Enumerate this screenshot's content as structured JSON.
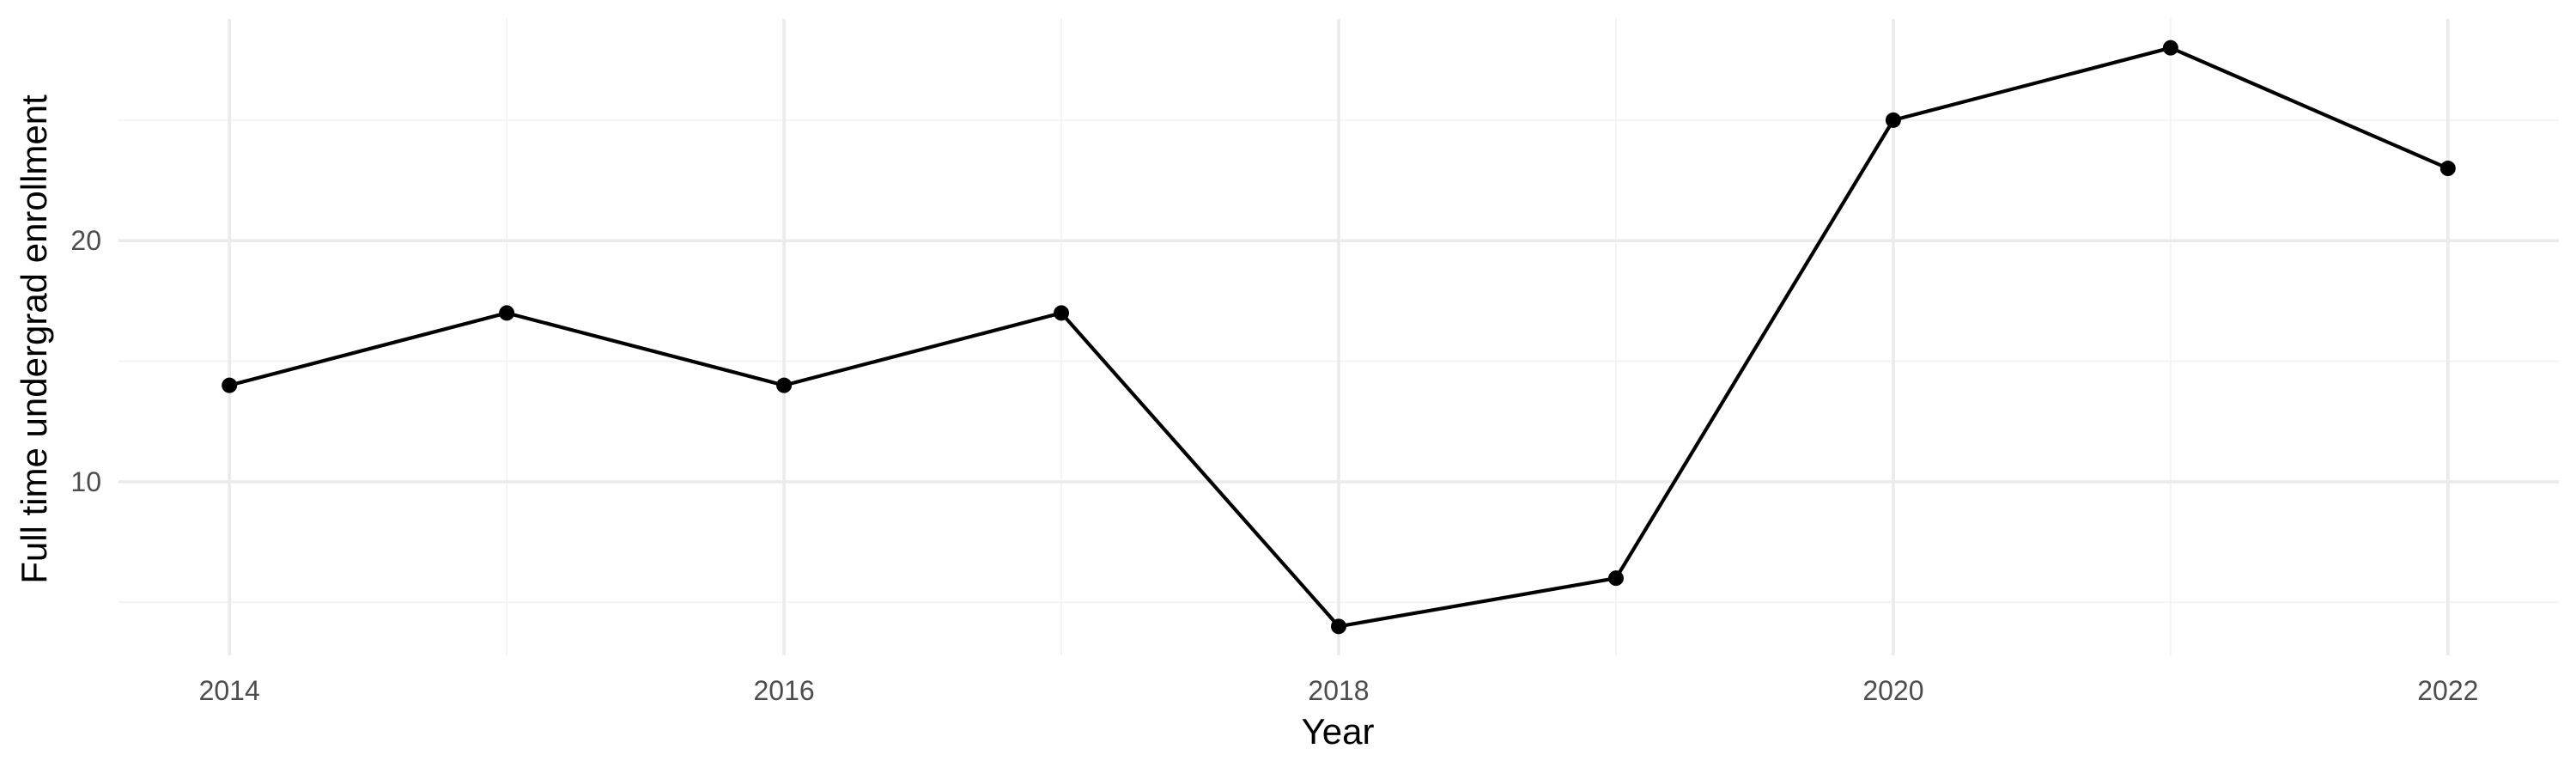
{
  "chart_data": {
    "type": "line",
    "xlabel": "Year",
    "ylabel": "Full time undergrad enrollment",
    "x": [
      2014,
      2015,
      2016,
      2017,
      2018,
      2019,
      2020,
      2021,
      2022
    ],
    "series": [
      {
        "values": [
          14,
          17,
          14,
          17,
          4,
          6,
          25,
          28,
          23
        ]
      }
    ],
    "xlim": [
      2013.6,
      2022.4
    ],
    "ylim": [
      2.8,
      29.2
    ],
    "x_ticks": [
      2014,
      2016,
      2018,
      2020,
      2022
    ],
    "y_ticks": [
      10,
      20
    ],
    "x_minor_ticks": [
      2015,
      2017,
      2019,
      2021
    ],
    "y_minor_ticks": [
      5,
      15,
      25
    ],
    "grid": true,
    "legend": "none",
    "colors": {
      "line": "#000000",
      "points": "#000000",
      "grid": "#ebebeb",
      "text": "#4d4d4d"
    }
  }
}
